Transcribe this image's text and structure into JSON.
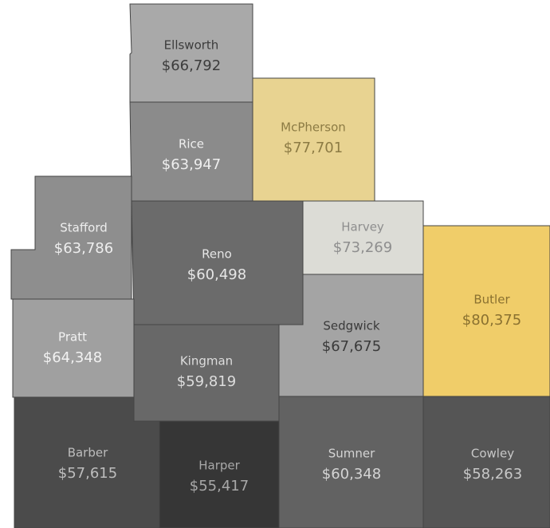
{
  "regions": [
    {
      "name": "Ellsworth",
      "value": 66792,
      "value_label": "$66,792",
      "color": "#a9a9a9"
    },
    {
      "name": "Rice",
      "value": 63947,
      "value_label": "$63,947",
      "color": "#8b8b8b"
    },
    {
      "name": "McPherson",
      "value": 77701,
      "value_label": "$77,701",
      "color": "#e8d391"
    },
    {
      "name": "Stafford",
      "value": 63786,
      "value_label": "$63,786",
      "color": "#8e8e8e"
    },
    {
      "name": "Reno",
      "value": 60498,
      "value_label": "$60,498",
      "color": "#6b6b6b"
    },
    {
      "name": "Harvey",
      "value": 73269,
      "value_label": "$73,269",
      "color": "#dcdcd6"
    },
    {
      "name": "Butler",
      "value": 80375,
      "value_label": "$80,375",
      "color": "#f0cd69"
    },
    {
      "name": "Sedgwick",
      "value": 67675,
      "value_label": "$67,675",
      "color": "#a4a4a4"
    },
    {
      "name": "Pratt",
      "value": 64348,
      "value_label": "$64,348",
      "color": "#a0a0a0"
    },
    {
      "name": "Kingman",
      "value": 59819,
      "value_label": "$59,819",
      "color": "#686868"
    },
    {
      "name": "Barber",
      "value": 57615,
      "value_label": "$57,615",
      "color": "#4b4b4b"
    },
    {
      "name": "Harper",
      "value": 55417,
      "value_label": "$55,417",
      "color": "#363636"
    },
    {
      "name": "Sumner",
      "value": 60348,
      "value_label": "$60,348",
      "color": "#626262"
    },
    {
      "name": "Cowley",
      "value": 58263,
      "value_label": "$58,263",
      "color": "#555555"
    }
  ]
}
